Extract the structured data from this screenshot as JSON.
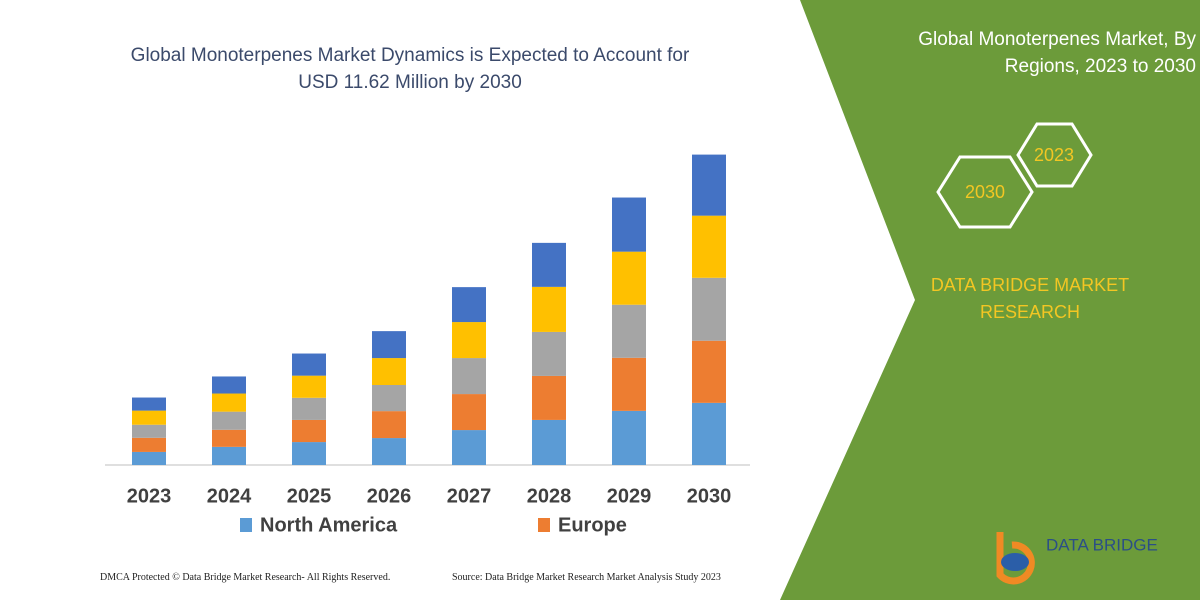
{
  "chart_data": {
    "type": "stacked_bar",
    "title": "Global Monoterpenes Market Dynamics is Expected to Account for USD 11.62 Million by 2030",
    "categories": [
      "2023",
      "2024",
      "2025",
      "2026",
      "2027",
      "2028",
      "2029",
      "2030"
    ],
    "series": [
      {
        "name": "North America",
        "color": "#5b9bd5",
        "values": [
          0.49,
          0.68,
          0.86,
          1.01,
          1.31,
          1.69,
          2.03,
          2.33
        ]
      },
      {
        "name": "Europe",
        "color": "#ed7d31",
        "values": [
          0.53,
          0.64,
          0.83,
          1.01,
          1.35,
          1.65,
          1.99,
          2.33
        ]
      },
      {
        "color": "#a5a5a5",
        "values": [
          0.49,
          0.68,
          0.83,
          0.98,
          1.35,
          1.65,
          1.99,
          2.36
        ]
      },
      {
        "color": "#ffc000",
        "values": [
          0.53,
          0.68,
          0.83,
          1.01,
          1.35,
          1.69,
          1.99,
          2.33
        ]
      },
      {
        "color": "#4472c4",
        "values": [
          0.49,
          0.64,
          0.83,
          1.01,
          1.31,
          1.65,
          2.03,
          2.29
        ]
      }
    ],
    "ylim": [
      0,
      12
    ],
    "grid": false
  },
  "side_panel": {
    "title": "Global Monoterpenes Market, By Regions, 2023 to 2030",
    "hex_labels": [
      "2023",
      "2030"
    ],
    "brand": "DATA BRIDGE MARKET RESEARCH",
    "logo": "DATA BRIDGE"
  },
  "footer": {
    "left": "DMCA Protected © Data Bridge Market Research- All Rights Reserved.",
    "right": "Source: Data Bridge Market Research Market Analysis Study 2023"
  }
}
